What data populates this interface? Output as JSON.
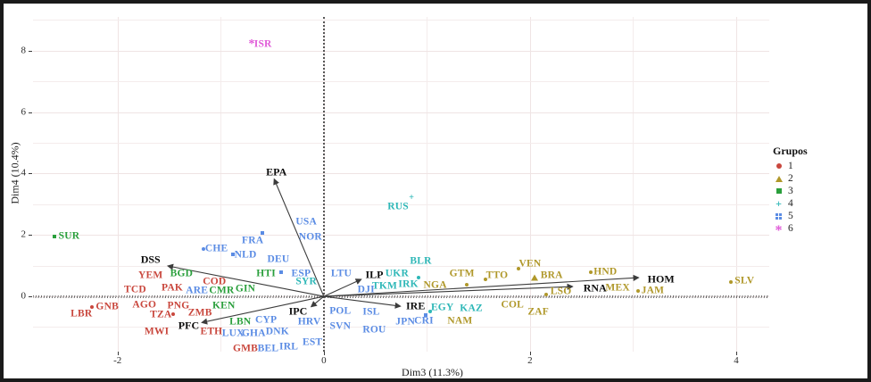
{
  "chart_data": {
    "type": "scatter",
    "title": "",
    "xlabel": "Dim3 (11.3%)",
    "ylabel": "Dim4 (10.4%)",
    "xlim": [
      -2.82,
      4.32
    ],
    "ylim": [
      -1.8,
      9.1
    ],
    "x_tick_values": [
      -2,
      0,
      2,
      4
    ],
    "x_tick_labels": [
      "-2",
      "0",
      "2",
      "4"
    ],
    "y_tick_values": [
      0,
      2,
      4,
      6,
      8
    ],
    "y_tick_labels": [
      "0",
      "2",
      "4",
      "6",
      "8"
    ],
    "grid": "on",
    "zero_lines": {
      "vertical": "dotted",
      "horizontal": "hatched"
    },
    "legend": {
      "title": "Grupos",
      "position": "right",
      "items": [
        {
          "label": "1",
          "group": "1"
        },
        {
          "label": "2",
          "group": "2"
        },
        {
          "label": "3",
          "group": "3"
        },
        {
          "label": "4",
          "group": "4"
        },
        {
          "label": "5",
          "group": "5"
        },
        {
          "label": "6",
          "group": "6"
        }
      ]
    },
    "groups": {
      "1": {
        "color": "#c9473d",
        "shape": "circle"
      },
      "2": {
        "color": "#b0982a",
        "shape": "triangle"
      },
      "3": {
        "color": "#2a9f3c",
        "shape": "square"
      },
      "4": {
        "color": "#2db7b7",
        "shape": "plus"
      },
      "5": {
        "color": "#5b8ce4",
        "shape": "boxplus"
      },
      "6": {
        "color": "#e05ad8",
        "shape": "asterisk"
      }
    },
    "variables": [
      {
        "label": "EPA",
        "tip": [
          -0.48,
          3.81
        ],
        "label_at": [
          -0.46,
          4.03
        ]
      },
      {
        "label": "DSS",
        "tip": [
          -1.51,
          0.99
        ],
        "label_at": [
          -1.68,
          1.19
        ]
      },
      {
        "label": "PFC",
        "tip": [
          -1.18,
          -0.85
        ],
        "label_at": [
          -1.31,
          -0.97
        ]
      },
      {
        "label": "IPC",
        "tip": [
          -0.12,
          -0.33
        ],
        "label_at": [
          -0.25,
          -0.5
        ]
      },
      {
        "label": "ILP",
        "tip": [
          0.36,
          0.55
        ],
        "label_at": [
          0.49,
          0.69
        ]
      },
      {
        "label": "IRE",
        "tip": [
          0.74,
          -0.32
        ],
        "label_at": [
          0.89,
          -0.33
        ]
      },
      {
        "label": "RNA",
        "tip": [
          2.41,
          0.32
        ],
        "label_at": [
          2.63,
          0.27
        ]
      },
      {
        "label": "HOM",
        "tip": [
          3.05,
          0.61
        ],
        "label_at": [
          3.27,
          0.56
        ]
      }
    ],
    "points": [
      {
        "code": "YEM",
        "group": "1",
        "x": -1.68,
        "y": 0.67
      },
      {
        "code": "TCD",
        "group": "1",
        "x": -1.83,
        "y": 0.2
      },
      {
        "code": "PAK",
        "group": "1",
        "x": -1.47,
        "y": 0.26
      },
      {
        "code": "COD",
        "group": "1",
        "x": -1.06,
        "y": 0.47
      },
      {
        "code": "GNB",
        "group": "1",
        "x": -2.1,
        "y": -0.35,
        "marker": {
          "shape": "dot",
          "x": -2.25,
          "y": -0.35
        }
      },
      {
        "code": "LBR",
        "group": "1",
        "x": -2.35,
        "y": -0.58
      },
      {
        "code": "AGO",
        "group": "1",
        "x": -1.74,
        "y": -0.29
      },
      {
        "code": "PNG",
        "group": "1",
        "x": -1.41,
        "y": -0.32
      },
      {
        "code": "TZA",
        "group": "1",
        "x": -1.58,
        "y": -0.61,
        "marker": {
          "shape": "dot",
          "x": -1.46,
          "y": -0.58
        }
      },
      {
        "code": "ZMB",
        "group": "1",
        "x": -1.2,
        "y": -0.55
      },
      {
        "code": "MWI",
        "group": "1",
        "x": -1.62,
        "y": -1.16
      },
      {
        "code": "ETH",
        "group": "1",
        "x": -1.09,
        "y": -1.16
      },
      {
        "code": "GMB",
        "group": "1",
        "x": -0.76,
        "y": -1.72
      },
      {
        "code": "NGA",
        "group": "2",
        "x": 1.08,
        "y": 0.35
      },
      {
        "code": "GTM",
        "group": "2",
        "x": 1.34,
        "y": 0.73,
        "marker": {
          "shape": "dot",
          "x": 1.39,
          "y": 0.38
        }
      },
      {
        "code": "TTO",
        "group": "2",
        "x": 1.68,
        "y": 0.67,
        "marker": {
          "shape": "dot",
          "x": 1.57,
          "y": 0.56
        }
      },
      {
        "code": "VEN",
        "group": "2",
        "x": 2.0,
        "y": 1.05,
        "marker": {
          "shape": "dot",
          "x": 1.89,
          "y": 0.9
        }
      },
      {
        "code": "BRA",
        "group": "2",
        "x": 2.21,
        "y": 0.67,
        "marker": {
          "shape": "triangle",
          "x": 2.04,
          "y": 0.6,
          "size": 7
        }
      },
      {
        "code": "HND",
        "group": "2",
        "x": 2.73,
        "y": 0.78,
        "marker": {
          "shape": "dot",
          "x": 2.59,
          "y": 0.78
        }
      },
      {
        "code": "MEX",
        "group": "2",
        "x": 2.85,
        "y": 0.26
      },
      {
        "code": "JAM",
        "group": "2",
        "x": 3.19,
        "y": 0.17,
        "marker": {
          "shape": "dot",
          "x": 3.05,
          "y": 0.19
        }
      },
      {
        "code": "LSO",
        "group": "2",
        "x": 2.3,
        "y": 0.15,
        "marker": {
          "shape": "dot",
          "x": 2.16,
          "y": 0.05
        }
      },
      {
        "code": "COL",
        "group": "2",
        "x": 1.83,
        "y": -0.29
      },
      {
        "code": "ZAF",
        "group": "2",
        "x": 2.08,
        "y": -0.52
      },
      {
        "code": "SLV",
        "group": "2",
        "x": 4.08,
        "y": 0.49,
        "marker": {
          "shape": "dot",
          "x": 3.95,
          "y": 0.47
        }
      },
      {
        "code": "NAM",
        "group": "2",
        "x": 1.32,
        "y": -0.81
      },
      {
        "code": "SUR",
        "group": "3",
        "x": -2.47,
        "y": 1.95,
        "marker": {
          "shape": "square",
          "x": -2.61,
          "y": 1.94
        }
      },
      {
        "code": "BGD",
        "group": "3",
        "x": -1.38,
        "y": 0.73
      },
      {
        "code": "CMR",
        "group": "3",
        "x": -0.99,
        "y": 0.17
      },
      {
        "code": "GIN",
        "group": "3",
        "x": -0.76,
        "y": 0.23
      },
      {
        "code": "HTI",
        "group": "3",
        "x": -0.56,
        "y": 0.73
      },
      {
        "code": "KEN",
        "group": "3",
        "x": -0.97,
        "y": -0.32
      },
      {
        "code": "LBN",
        "group": "3",
        "x": -0.81,
        "y": -0.84
      },
      {
        "code": "SYR",
        "group": "4",
        "x": -0.17,
        "y": 0.47
      },
      {
        "code": "RUS",
        "group": "4",
        "x": 0.72,
        "y": 2.91,
        "marker": {
          "shape": "plus",
          "x": 0.85,
          "y": 3.2
        }
      },
      {
        "code": "UKR",
        "group": "4",
        "x": 0.71,
        "y": 0.73,
        "marker": {
          "shape": "dot",
          "x": 0.92,
          "y": 0.62
        }
      },
      {
        "code": "BLR",
        "group": "4",
        "x": 0.94,
        "y": 1.13
      },
      {
        "code": "TKM",
        "group": "4",
        "x": 0.59,
        "y": 0.32
      },
      {
        "code": "IRK",
        "group": "4",
        "x": 0.82,
        "y": 0.38
      },
      {
        "code": "EGY",
        "group": "4",
        "x": 1.15,
        "y": -0.38,
        "marker": {
          "shape": "dot",
          "x": 1.03,
          "y": -0.49
        }
      },
      {
        "code": "KAZ",
        "group": "4",
        "x": 1.43,
        "y": -0.41
      },
      {
        "code": "ARE",
        "group": "5",
        "x": -1.23,
        "y": 0.17
      },
      {
        "code": "ESP",
        "group": "5",
        "x": -0.22,
        "y": 0.73,
        "marker": {
          "shape": "square",
          "x": -0.41,
          "y": 0.78
        }
      },
      {
        "code": "CHE",
        "group": "5",
        "x": -1.04,
        "y": 1.54,
        "marker": {
          "shape": "dot",
          "x": -1.17,
          "y": 1.54
        }
      },
      {
        "code": "NLD",
        "group": "5",
        "x": -0.76,
        "y": 1.34,
        "marker": {
          "shape": "square",
          "x": -0.88,
          "y": 1.37
        }
      },
      {
        "code": "FRA",
        "group": "5",
        "x": -0.69,
        "y": 1.8,
        "marker": {
          "shape": "square",
          "x": -0.6,
          "y": 2.06
        }
      },
      {
        "code": "DEU",
        "group": "5",
        "x": -0.44,
        "y": 1.19
      },
      {
        "code": "USA",
        "group": "5",
        "x": -0.17,
        "y": 2.41
      },
      {
        "code": "NOR",
        "group": "5",
        "x": -0.13,
        "y": 1.92
      },
      {
        "code": "CYP",
        "group": "5",
        "x": -0.56,
        "y": -0.78
      },
      {
        "code": "HRV",
        "group": "5",
        "x": -0.14,
        "y": -0.84
      },
      {
        "code": "LUX",
        "group": "5",
        "x": -0.88,
        "y": -1.22
      },
      {
        "code": "GHA",
        "group": "5",
        "x": -0.68,
        "y": -1.22
      },
      {
        "code": "DNK",
        "group": "5",
        "x": -0.45,
        "y": -1.16
      },
      {
        "code": "BEL",
        "group": "5",
        "x": -0.54,
        "y": -1.72
      },
      {
        "code": "IRL",
        "group": "5",
        "x": -0.34,
        "y": -1.66
      },
      {
        "code": "EST",
        "group": "5",
        "x": -0.11,
        "y": -1.51
      },
      {
        "code": "LTU",
        "group": "5",
        "x": 0.17,
        "y": 0.73
      },
      {
        "code": "DJI",
        "group": "5",
        "x": 0.41,
        "y": 0.2
      },
      {
        "code": "POL",
        "group": "5",
        "x": 0.16,
        "y": -0.49
      },
      {
        "code": "ISL",
        "group": "5",
        "x": 0.46,
        "y": -0.52
      },
      {
        "code": "SVN",
        "group": "5",
        "x": 0.16,
        "y": -0.99
      },
      {
        "code": "ROU",
        "group": "5",
        "x": 0.49,
        "y": -1.1
      },
      {
        "code": "JPN",
        "group": "5",
        "x": 0.79,
        "y": -0.84
      },
      {
        "code": "CRI",
        "group": "5",
        "x": 0.97,
        "y": -0.81,
        "marker": {
          "shape": "square",
          "x": 0.99,
          "y": -0.6
        }
      },
      {
        "code": "ISR",
        "group": "6",
        "x": -0.59,
        "y": 8.19,
        "marker": {
          "shape": "asterisk",
          "x": -0.7,
          "y": 8.19,
          "size": 14
        }
      }
    ]
  }
}
